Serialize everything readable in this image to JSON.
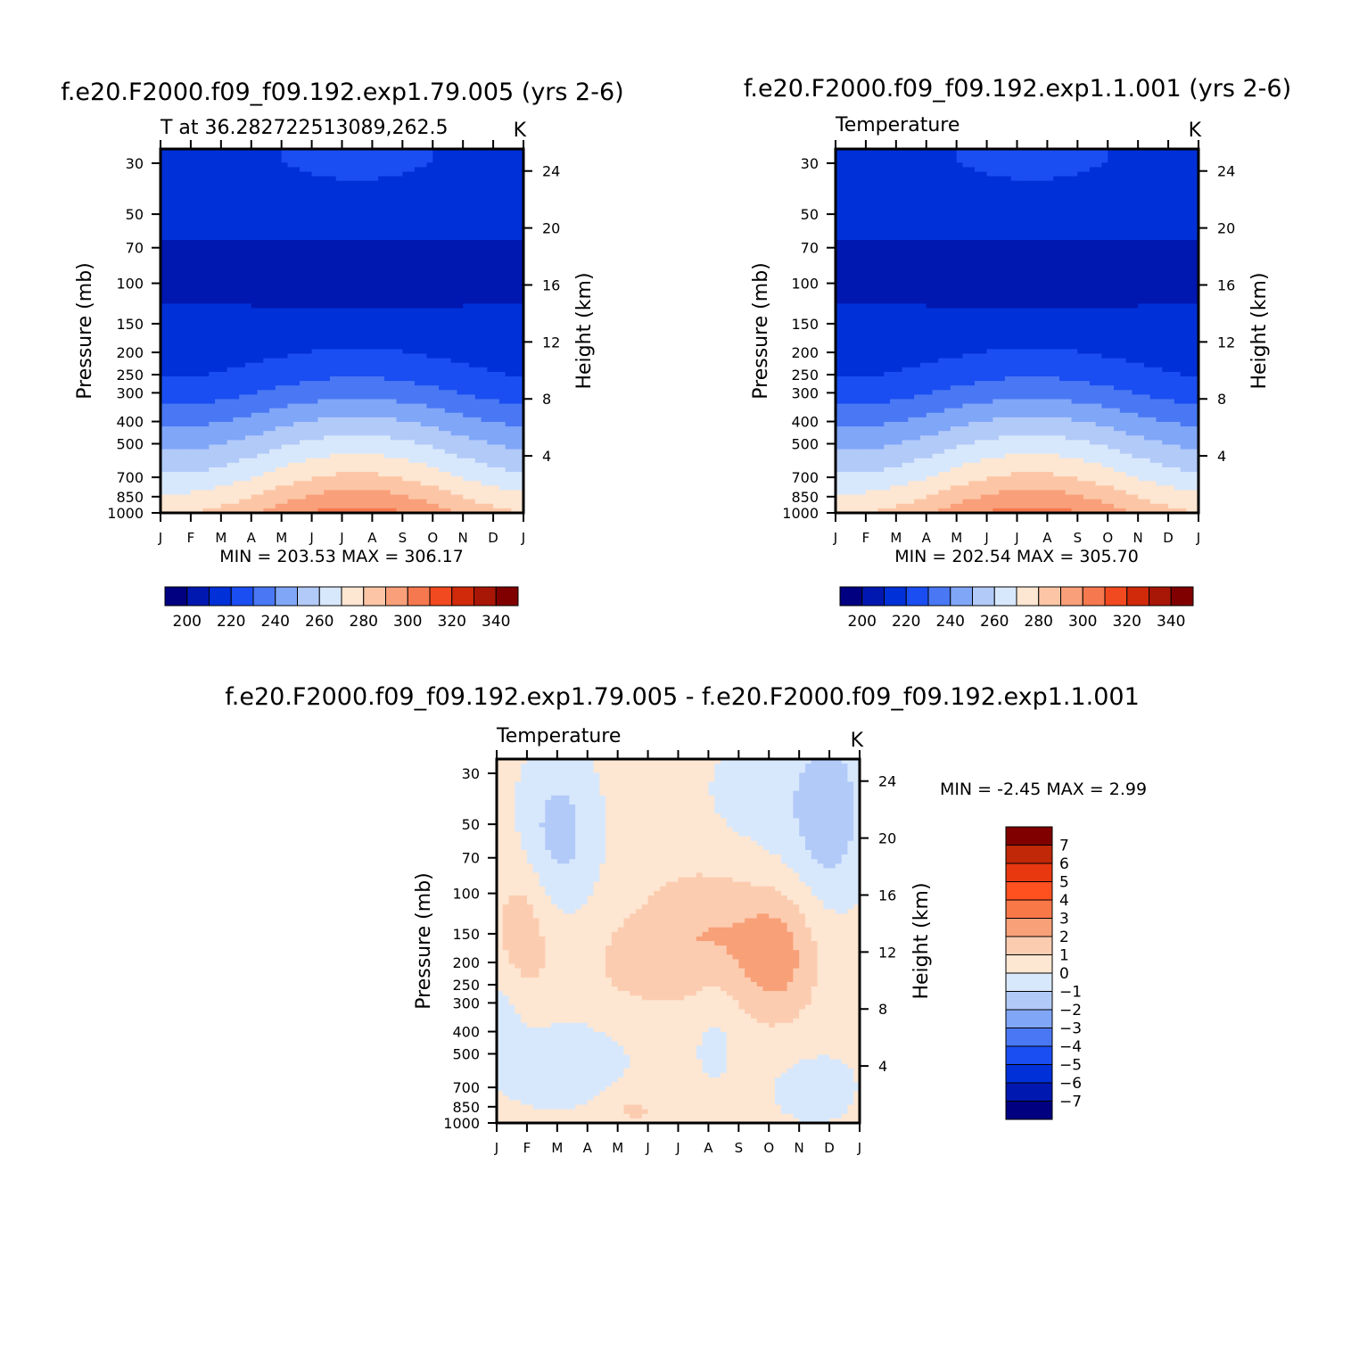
{
  "chart_data": [
    {
      "type": "heatmap",
      "title": "f.e20.F2000.f09_f09.192.exp1.79.005 (yrs 2-6)",
      "subtitle_left": "T at 36.282722513089,262.5",
      "subtitle_right": "K",
      "ylabel": "Pressure (mb)",
      "ylabel_right": "Height (km)",
      "x_ticks": [
        "J",
        "F",
        "M",
        "A",
        "M",
        "J",
        "J",
        "A",
        "S",
        "O",
        "N",
        "D",
        "J"
      ],
      "y_ticks": [
        30,
        50,
        70,
        100,
        150,
        200,
        250,
        300,
        400,
        500,
        700,
        850,
        1000
      ],
      "y_right_ticks": [
        24,
        20,
        16,
        12,
        8,
        4
      ],
      "ylim": [
        1000,
        26
      ],
      "stats": "MIN = 203.53 MAX = 306.17",
      "colorbar": {
        "ticks": [
          200,
          220,
          240,
          260,
          280,
          300,
          320,
          340
        ],
        "colors": [
          "#000080",
          "#0018b0",
          "#0030d8",
          "#1a4ef2",
          "#4a78f4",
          "#80a6f8",
          "#b2caf8",
          "#d8e8fc",
          "#fde6d2",
          "#fcc6a6",
          "#f9a07a",
          "#f6784e",
          "#f24a20",
          "#d02a0a",
          "#a81606",
          "#800000"
        ]
      },
      "fill_colors": [
        "#0018b0",
        "#0030d8",
        "#1a4ef2",
        "#4a78f4",
        "#80a6f8",
        "#b2caf8",
        "#d8e8fc",
        "#fde6d2",
        "#fcc6a6",
        "#f9a07a",
        "#f6784e"
      ],
      "field": {
        "base": 205,
        "amp": 0
      },
      "profile_annual": [
        {
          "p": 30,
          "T": 219
        },
        {
          "p": 50,
          "T": 214
        },
        {
          "p": 70,
          "T": 209
        },
        {
          "p": 100,
          "T": 206
        },
        {
          "p": 150,
          "T": 213
        },
        {
          "p": 200,
          "T": 218
        },
        {
          "p": 250,
          "T": 224
        },
        {
          "p": 300,
          "T": 231
        },
        {
          "p": 400,
          "T": 245
        },
        {
          "p": 500,
          "T": 256
        },
        {
          "p": 700,
          "T": 272
        },
        {
          "p": 850,
          "T": 283
        },
        {
          "p": 1000,
          "T": 292
        }
      ]
    },
    {
      "type": "heatmap",
      "title": "f.e20.F2000.f09_f09.192.exp1.1.001 (yrs 2-6)",
      "subtitle_left": "Temperature",
      "subtitle_right": "K",
      "ylabel": "Pressure (mb)",
      "ylabel_right": "Height (km)",
      "x_ticks": [
        "J",
        "F",
        "M",
        "A",
        "M",
        "J",
        "J",
        "A",
        "S",
        "O",
        "N",
        "D",
        "J"
      ],
      "y_ticks": [
        30,
        50,
        70,
        100,
        150,
        200,
        250,
        300,
        400,
        500,
        700,
        850,
        1000
      ],
      "y_right_ticks": [
        24,
        20,
        16,
        12,
        8,
        4
      ],
      "ylim": [
        1000,
        26
      ],
      "stats": "MIN = 202.54 MAX = 305.70",
      "colorbar": {
        "ticks": [
          200,
          220,
          240,
          260,
          280,
          300,
          320,
          340
        ],
        "colors": [
          "#000080",
          "#0018b0",
          "#0030d8",
          "#1a4ef2",
          "#4a78f4",
          "#80a6f8",
          "#b2caf8",
          "#d8e8fc",
          "#fde6d2",
          "#fcc6a6",
          "#f9a07a",
          "#f6784e",
          "#f24a20",
          "#d02a0a",
          "#a81606",
          "#800000"
        ]
      },
      "profile_annual": [
        {
          "p": 30,
          "T": 219
        },
        {
          "p": 50,
          "T": 214
        },
        {
          "p": 70,
          "T": 209
        },
        {
          "p": 100,
          "T": 206
        },
        {
          "p": 150,
          "T": 213
        },
        {
          "p": 200,
          "T": 218
        },
        {
          "p": 250,
          "T": 224
        },
        {
          "p": 300,
          "T": 231
        },
        {
          "p": 400,
          "T": 245
        },
        {
          "p": 500,
          "T": 256
        },
        {
          "p": 700,
          "T": 272
        },
        {
          "p": 850,
          "T": 283
        },
        {
          "p": 1000,
          "T": 292
        }
      ]
    },
    {
      "type": "heatmap",
      "title": "f.e20.F2000.f09_f09.192.exp1.79.005 - f.e20.F2000.f09_f09.192.exp1.1.001",
      "subtitle_left": "Temperature",
      "subtitle_right": "K",
      "ylabel": "Pressure (mb)",
      "ylabel_right": "Height (km)",
      "x_ticks": [
        "J",
        "F",
        "M",
        "A",
        "M",
        "J",
        "J",
        "A",
        "S",
        "O",
        "N",
        "D",
        "J"
      ],
      "y_ticks": [
        30,
        50,
        70,
        100,
        150,
        200,
        250,
        300,
        400,
        500,
        700,
        850,
        1000
      ],
      "y_right_ticks": [
        24,
        20,
        16,
        12,
        8,
        4
      ],
      "ylim": [
        1000,
        26
      ],
      "stats": "MIN = -2.45 MAX = 2.99",
      "colorbar": {
        "ticks": [
          7,
          6,
          5,
          4,
          3,
          2,
          1,
          0,
          -1,
          -2,
          -3,
          -4,
          -5,
          -6,
          -7
        ],
        "colors": [
          "#800000",
          "#c02808",
          "#e83810",
          "#ff5020",
          "#f87848",
          "#f8a078",
          "#fcccb0",
          "#fde6d2",
          "#d8e8fc",
          "#b2caf8",
          "#80a6f8",
          "#4a78f4",
          "#1a4ef2",
          "#0030d8",
          "#0018b0",
          "#000080"
        ]
      }
    }
  ]
}
